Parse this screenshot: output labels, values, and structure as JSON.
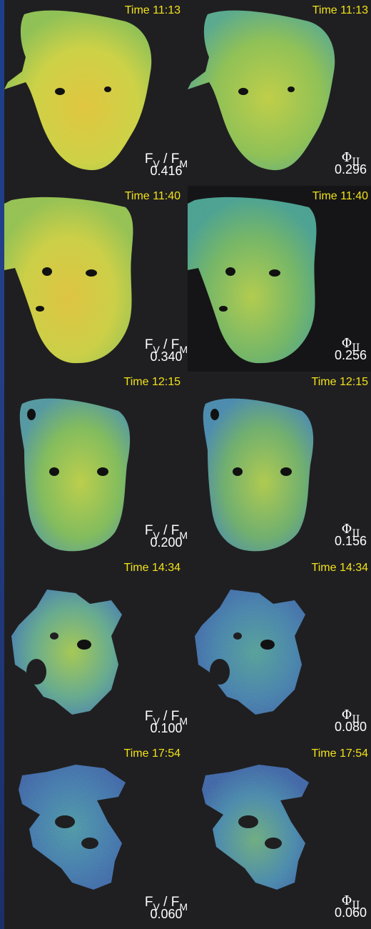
{
  "rows": [
    {
      "left_time": "Time 11:13",
      "right_time": "Time 11:13",
      "fv_value": "0.416",
      "phi_value": "0.296"
    },
    {
      "left_time": "Time 11:40",
      "right_time": "Time 11:40",
      "fv_value": "0.340",
      "phi_value": "0.256"
    },
    {
      "left_time": "Time 12:15",
      "right_time": "Time 12:15",
      "fv_value": "0.200",
      "phi_value": "0.156"
    },
    {
      "left_time": "Time 14:34",
      "right_time": "Time 14:34",
      "fv_value": "0.100",
      "phi_value": "0.080"
    },
    {
      "left_time": "Time 17:54",
      "right_time": "Time 17:54",
      "fv_value": "0.060",
      "phi_value": "0.060"
    }
  ],
  "labels": {
    "fv_f": "F",
    "fv_sub_v": "V",
    "fv_slash": " / F",
    "fv_sub_m": "M",
    "phi_symbol": "Φ",
    "phi_sub": "II"
  },
  "colors": {
    "time_label": "#f2e21a",
    "background": "#1f1f21",
    "yellow": "#e8d72a",
    "green": "#7fbf4a",
    "teal": "#3f9a8a",
    "blue": "#3a5fb0"
  }
}
